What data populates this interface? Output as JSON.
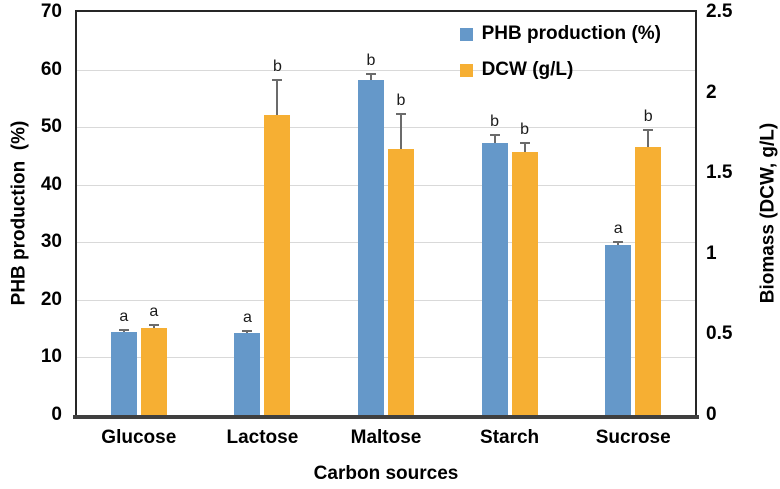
{
  "chart_data": {
    "type": "bar",
    "title": "",
    "categories": [
      "Glucose",
      "Lactose",
      "Maltose",
      "Starch",
      "Sucrose"
    ],
    "xlabel": "Carbon sources",
    "grid": "horizontal",
    "legend_position": "top-right-inside",
    "series": [
      {
        "name": "PHB production (%)",
        "axis": "left",
        "color": "#6598c9",
        "values": [
          14.5,
          14.3,
          58.2,
          47.3,
          29.5
        ],
        "errors": [
          0.3,
          0.3,
          1.0,
          1.4,
          0.5
        ],
        "sig_letters": [
          "a",
          "a",
          "b",
          "b",
          "a"
        ]
      },
      {
        "name": "DCW (g/L)",
        "axis": "right",
        "color": "#f6af33",
        "values": [
          0.54,
          1.86,
          1.65,
          1.63,
          1.66
        ],
        "errors": [
          0.02,
          0.22,
          0.22,
          0.06,
          0.11
        ],
        "sig_letters": [
          "a",
          "b",
          "b",
          "b",
          "b"
        ]
      }
    ],
    "left_axis": {
      "label": "PHB production  (%)",
      "min": 0,
      "max": 70,
      "ticks": [
        0,
        10,
        20,
        30,
        40,
        50,
        60,
        70
      ]
    },
    "right_axis": {
      "label": "Biomass (DCW, g/L)",
      "min": 0,
      "max": 2.5,
      "ticks": [
        0,
        0.5,
        1,
        1.5,
        2,
        2.5
      ]
    },
    "colors": {
      "phb_bar": "#6598c9",
      "dcw_bar": "#f6af33",
      "gridline": "#d9d9d9",
      "frame": "#262626",
      "error_bar": "#6b6b6b",
      "text": "#000000"
    }
  }
}
